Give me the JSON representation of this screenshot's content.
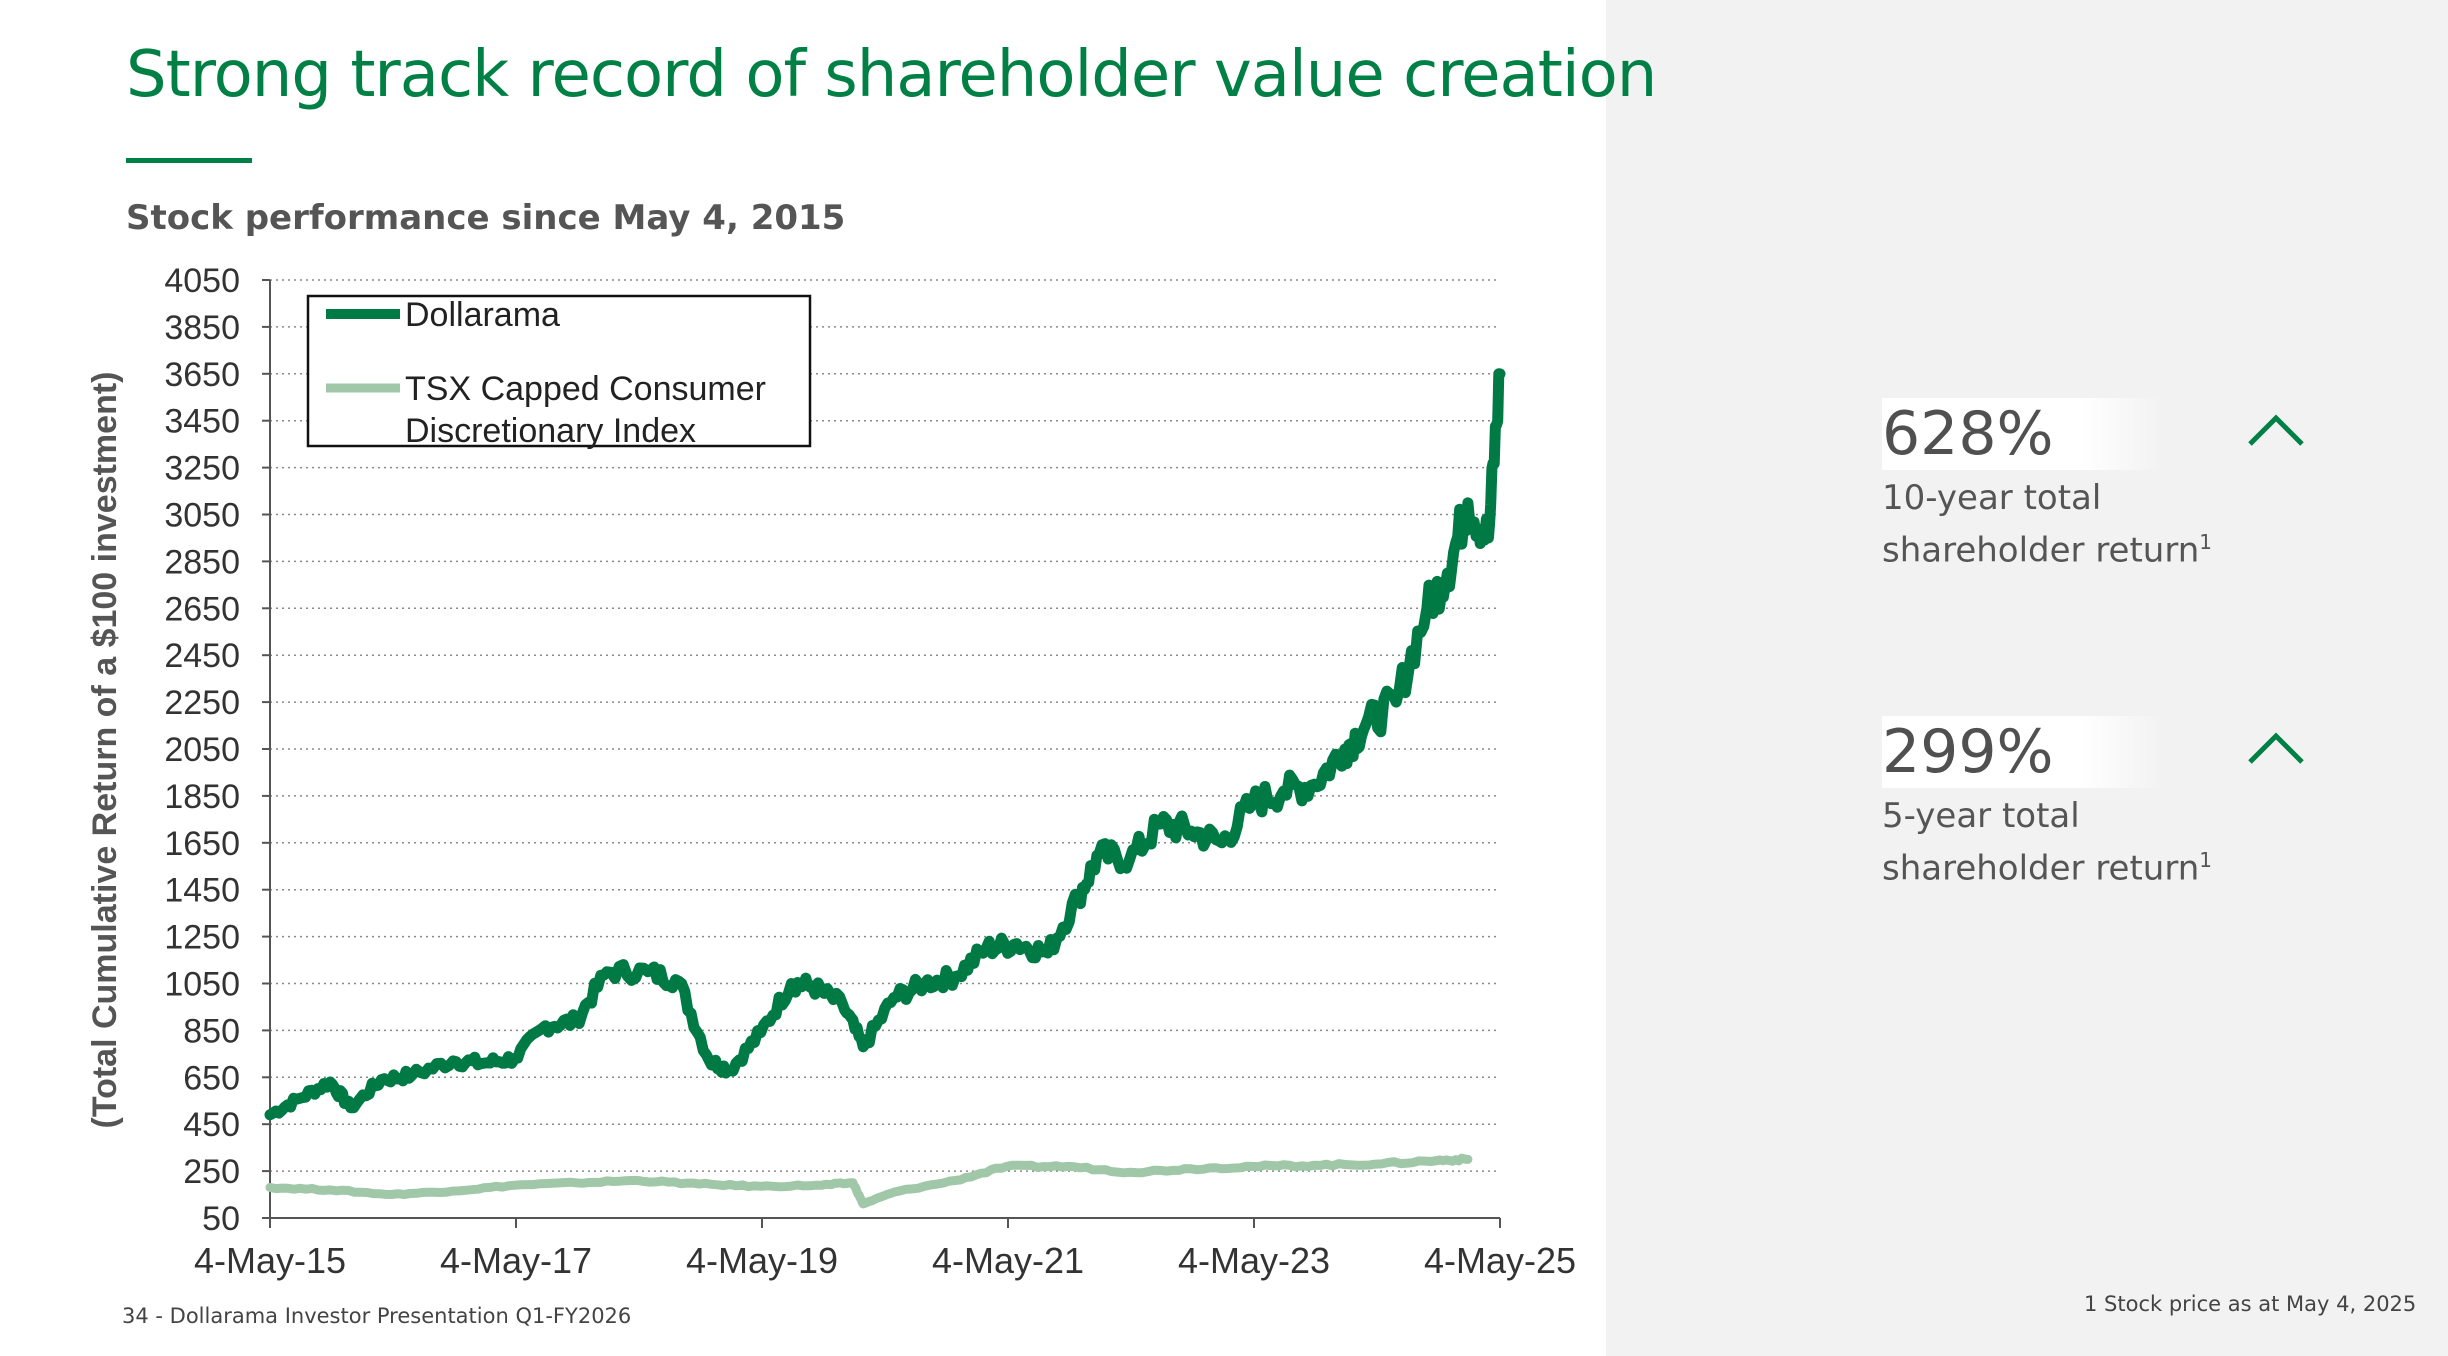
{
  "slide": {
    "title": "Strong track record of shareholder value creation",
    "subtitle": "Stock performance since May 4, 2015",
    "footer_left": "34 - Dollarama Investor Presentation Q1-FY2026",
    "footer_right": "1 Stock price as at May 4, 2025",
    "colors": {
      "brand_green": "#008044",
      "dollarama_line": "#007a45",
      "tsx_line": "#9fc7a8",
      "panel_bg": "#f2f2f2"
    }
  },
  "stats": [
    {
      "value": "628%",
      "label_line1": "10-year total",
      "label_line2": "shareholder return",
      "footnote": "1",
      "icon": "chevron-up-icon"
    },
    {
      "value": "299%",
      "label_line1": "5-year total",
      "label_line2": "shareholder return",
      "footnote": "1",
      "icon": "chevron-up-icon"
    }
  ],
  "chart_data": {
    "type": "line",
    "title": "",
    "xlabel": "",
    "ylabel": "(Total Cumulative Return of a $100 investment)",
    "ylim": [
      50,
      4050
    ],
    "y_ticks": [
      4050,
      3850,
      3650,
      3450,
      3250,
      3050,
      2850,
      2650,
      2450,
      2250,
      2050,
      1850,
      1650,
      1450,
      1250,
      1050,
      850,
      650,
      450,
      250,
      50
    ],
    "x_ticks": [
      "4-May-15",
      "4-May-17",
      "4-May-19",
      "4-May-21",
      "4-May-23",
      "4-May-25"
    ],
    "x_range": [
      "4-May-15",
      "4-May-25"
    ],
    "grid": true,
    "legend_position": "top-left",
    "series": [
      {
        "name": "Dollarama",
        "color": "#007a45",
        "x": [
          "4-May-15",
          "Aug-15",
          "Nov-15",
          "Jan-16",
          "Apr-16",
          "Jul-16",
          "Nov-16",
          "Feb-17",
          "May-17",
          "Aug-17",
          "Nov-17",
          "Feb-18",
          "Jun-18",
          "Sep-18",
          "Dec-18",
          "Feb-19",
          "May-19",
          "Aug-19",
          "Oct-19",
          "Jan-20",
          "Mar-20",
          "Jun-20",
          "Sep-20",
          "Dec-20",
          "Mar-21",
          "Jun-21",
          "Sep-21",
          "Dec-21",
          "Feb-22",
          "May-22",
          "Aug-22",
          "Nov-22",
          "Feb-23",
          "May-23",
          "Aug-23",
          "Nov-23",
          "Feb-24",
          "Apr-24",
          "Jul-24",
          "Oct-24",
          "Dec-24",
          "Feb-25",
          "Apr-25",
          "4-May-25"
        ],
        "values": [
          490,
          560,
          630,
          520,
          640,
          660,
          720,
          710,
          730,
          870,
          890,
          1100,
          1100,
          1060,
          720,
          680,
          840,
          1050,
          1040,
          960,
          780,
          990,
          1050,
          1080,
          1200,
          1220,
          1180,
          1420,
          1600,
          1580,
          1730,
          1700,
          1650,
          1820,
          1870,
          1900,
          2050,
          2150,
          2250,
          2650,
          2800,
          3100,
          2950,
          3650
        ]
      },
      {
        "name": "TSX Capped Consumer Discretionary Index",
        "color": "#9fc7a8",
        "x": [
          "4-May-15",
          "Nov-15",
          "May-16",
          "Nov-16",
          "May-17",
          "Nov-17",
          "May-18",
          "Nov-18",
          "May-19",
          "Nov-19",
          "Feb-20",
          "Mar-20",
          "Jun-20",
          "Dec-20",
          "May-21",
          "Nov-21",
          "May-22",
          "Nov-22",
          "May-23",
          "Nov-23",
          "May-24",
          "Nov-24",
          "Feb-25"
        ],
        "values": [
          180,
          170,
          150,
          165,
          190,
          200,
          210,
          195,
          185,
          190,
          200,
          110,
          160,
          210,
          270,
          270,
          245,
          260,
          270,
          275,
          280,
          295,
          300
        ]
      }
    ]
  }
}
